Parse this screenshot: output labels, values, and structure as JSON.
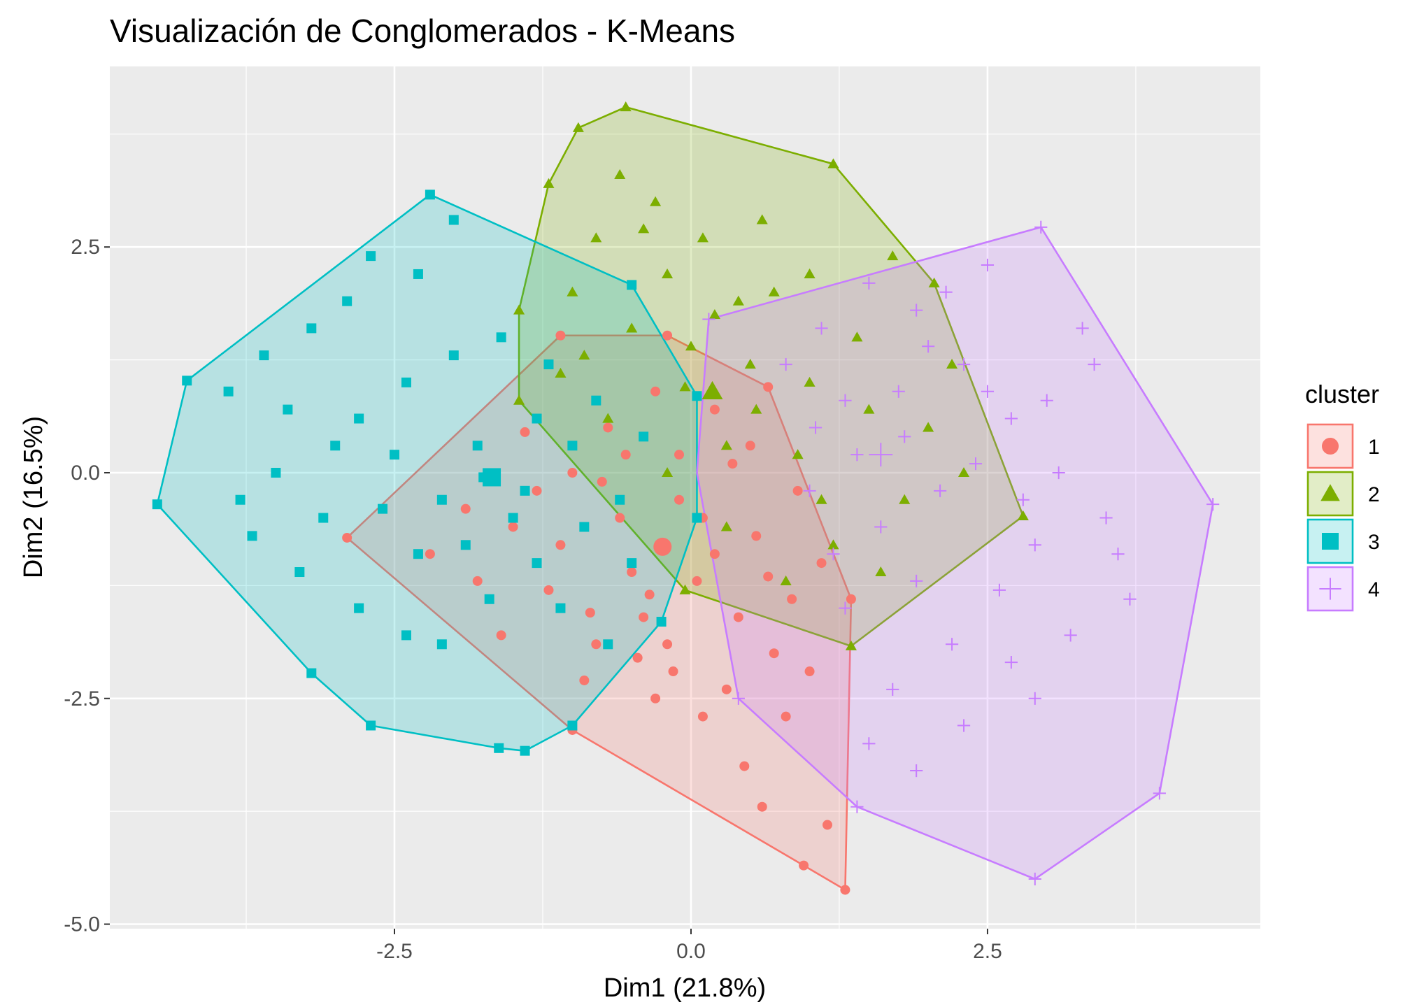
{
  "chart_data": {
    "type": "scatter",
    "title": "Visualización de Conglomerados - K-Means",
    "xlabel": "Dim1 (21.8%)",
    "ylabel": "Dim2 (16.5%)",
    "xlim": [
      -4.9,
      4.8
    ],
    "ylim": [
      -5.05,
      4.5
    ],
    "x_ticks": [
      -2.5,
      0.0,
      2.5
    ],
    "x_tick_labels": [
      "-2.5",
      "0.0",
      "2.5"
    ],
    "y_ticks": [
      2.5,
      0.0,
      -2.5,
      -5.0
    ],
    "y_tick_labels": [
      "2.5",
      "0.0",
      "-2.5",
      "-5.0"
    ],
    "grid": true,
    "legend": {
      "title": "cluster",
      "position": "right"
    },
    "series": [
      {
        "name": "1",
        "color": "#F8766D",
        "shape": "circle",
        "centroid": [
          -0.24,
          -0.82
        ],
        "hull": [
          [
            -2.9,
            -0.72
          ],
          [
            -1.1,
            1.52
          ],
          [
            -0.2,
            1.52
          ],
          [
            0.65,
            0.95
          ],
          [
            1.35,
            -1.4
          ],
          [
            1.3,
            -4.62
          ],
          [
            0.95,
            -4.35
          ],
          [
            -1.0,
            -2.85
          ],
          [
            -2.9,
            -0.72
          ]
        ],
        "points": [
          [
            -2.9,
            -0.72
          ],
          [
            -1.1,
            1.52
          ],
          [
            -0.2,
            1.52
          ],
          [
            0.65,
            0.95
          ],
          [
            1.35,
            -1.4
          ],
          [
            1.3,
            -4.62
          ],
          [
            0.95,
            -4.35
          ],
          [
            -1.0,
            -2.85
          ],
          [
            0.6,
            -3.7
          ],
          [
            0.45,
            -3.25
          ],
          [
            1.15,
            -3.9
          ],
          [
            0.1,
            -2.7
          ],
          [
            -0.3,
            -2.5
          ],
          [
            -0.4,
            -1.6
          ],
          [
            -0.8,
            -1.9
          ],
          [
            -1.2,
            -1.3
          ],
          [
            -1.5,
            -0.6
          ],
          [
            -1.8,
            -1.2
          ],
          [
            -0.6,
            -0.5
          ],
          [
            -0.1,
            -0.3
          ],
          [
            0.2,
            -0.9
          ],
          [
            0.4,
            -1.6
          ],
          [
            0.7,
            -2.0
          ],
          [
            1.0,
            -2.2
          ],
          [
            1.1,
            -1.0
          ],
          [
            0.9,
            -0.2
          ],
          [
            0.5,
            0.3
          ],
          [
            0.2,
            0.7
          ],
          [
            -0.3,
            0.9
          ],
          [
            -0.7,
            0.5
          ],
          [
            -1.0,
            0.0
          ],
          [
            -1.3,
            -0.2
          ],
          [
            -0.5,
            -1.1
          ],
          [
            -0.9,
            -2.3
          ],
          [
            -0.2,
            -1.9
          ],
          [
            0.3,
            -2.4
          ],
          [
            0.8,
            -2.7
          ],
          [
            -1.6,
            -1.8
          ],
          [
            -2.2,
            -0.9
          ],
          [
            -0.1,
            0.2
          ],
          [
            0.1,
            -0.5
          ],
          [
            0.55,
            -0.7
          ],
          [
            -0.75,
            -0.1
          ],
          [
            -1.1,
            -0.8
          ],
          [
            -0.35,
            -1.35
          ],
          [
            0.05,
            -1.2
          ],
          [
            -0.55,
            0.2
          ],
          [
            0.35,
            0.1
          ],
          [
            -1.4,
            0.45
          ],
          [
            -1.9,
            -0.4
          ],
          [
            0.85,
            -1.4
          ],
          [
            -0.15,
            -2.2
          ],
          [
            0.65,
            -1.15
          ],
          [
            -0.85,
            -1.55
          ],
          [
            -0.45,
            -2.05
          ]
        ]
      },
      {
        "name": "2",
        "color": "#7CAE00",
        "shape": "triangle",
        "centroid": [
          0.18,
          0.9
        ],
        "hull": [
          [
            -0.55,
            4.05
          ],
          [
            1.2,
            3.42
          ],
          [
            2.05,
            2.1
          ],
          [
            2.8,
            -0.48
          ],
          [
            1.35,
            -1.92
          ],
          [
            -0.05,
            -1.3
          ],
          [
            -1.45,
            0.8
          ],
          [
            -1.45,
            1.8
          ],
          [
            -1.2,
            3.2
          ],
          [
            -0.95,
            3.82
          ],
          [
            -0.55,
            4.05
          ]
        ],
        "points": [
          [
            -0.55,
            4.05
          ],
          [
            1.2,
            3.42
          ],
          [
            2.05,
            2.1
          ],
          [
            2.8,
            -0.48
          ],
          [
            1.35,
            -1.92
          ],
          [
            -0.05,
            -1.3
          ],
          [
            -1.45,
            0.8
          ],
          [
            -1.45,
            1.8
          ],
          [
            -1.2,
            3.2
          ],
          [
            -0.95,
            3.82
          ],
          [
            -0.6,
            3.3
          ],
          [
            -0.3,
            3.0
          ],
          [
            0.1,
            2.6
          ],
          [
            0.6,
            2.8
          ],
          [
            1.0,
            2.2
          ],
          [
            0.4,
            1.9
          ],
          [
            -0.2,
            2.2
          ],
          [
            -0.8,
            2.6
          ],
          [
            -1.0,
            2.0
          ],
          [
            -0.5,
            1.6
          ],
          [
            0.0,
            1.4
          ],
          [
            0.5,
            1.2
          ],
          [
            1.0,
            1.0
          ],
          [
            1.5,
            0.7
          ],
          [
            2.0,
            0.5
          ],
          [
            2.3,
            0.0
          ],
          [
            1.8,
            -0.3
          ],
          [
            1.2,
            -0.8
          ],
          [
            0.8,
            -1.2
          ],
          [
            0.3,
            -0.6
          ],
          [
            -0.2,
            0.0
          ],
          [
            -0.7,
            0.6
          ],
          [
            -1.1,
            1.1
          ],
          [
            0.3,
            0.3
          ],
          [
            0.9,
            0.2
          ],
          [
            1.4,
            1.5
          ],
          [
            1.7,
            2.4
          ],
          [
            0.7,
            2.0
          ],
          [
            -0.4,
            2.7
          ],
          [
            1.1,
            -0.3
          ],
          [
            0.55,
            0.7
          ],
          [
            -0.05,
            0.95
          ],
          [
            1.6,
            -1.1
          ],
          [
            2.2,
            1.2
          ],
          [
            0.2,
            1.75
          ],
          [
            -0.9,
            1.3
          ]
        ]
      },
      {
        "name": "3",
        "color": "#00BFC4",
        "shape": "square",
        "centroid": [
          -1.68,
          -0.05
        ],
        "hull": [
          [
            -2.2,
            3.08
          ],
          [
            -0.5,
            2.08
          ],
          [
            0.05,
            0.85
          ],
          [
            0.05,
            -0.5
          ],
          [
            -0.25,
            -1.65
          ],
          [
            -1.0,
            -2.8
          ],
          [
            -1.4,
            -3.08
          ],
          [
            -1.62,
            -3.05
          ],
          [
            -2.7,
            -2.8
          ],
          [
            -3.2,
            -2.22
          ],
          [
            -4.5,
            -0.35
          ],
          [
            -4.25,
            1.02
          ],
          [
            -2.2,
            3.08
          ]
        ],
        "points": [
          [
            -2.2,
            3.08
          ],
          [
            -0.5,
            2.08
          ],
          [
            0.05,
            0.85
          ],
          [
            0.05,
            -0.5
          ],
          [
            -0.25,
            -1.65
          ],
          [
            -1.0,
            -2.8
          ],
          [
            -1.4,
            -3.08
          ],
          [
            -1.62,
            -3.05
          ],
          [
            -2.7,
            -2.8
          ],
          [
            -3.2,
            -2.22
          ],
          [
            -4.5,
            -0.35
          ],
          [
            -4.25,
            1.02
          ],
          [
            -2.0,
            2.8
          ],
          [
            -2.7,
            2.4
          ],
          [
            -3.2,
            1.6
          ],
          [
            -3.6,
            1.3
          ],
          [
            -3.9,
            0.9
          ],
          [
            -3.5,
            0.0
          ],
          [
            -3.1,
            -0.5
          ],
          [
            -3.7,
            -0.7
          ],
          [
            -3.3,
            -1.1
          ],
          [
            -2.8,
            -1.5
          ],
          [
            -2.4,
            -1.8
          ],
          [
            -2.1,
            -1.9
          ],
          [
            -1.7,
            -1.4
          ],
          [
            -1.3,
            -1.0
          ],
          [
            -0.9,
            -0.6
          ],
          [
            -0.6,
            -0.3
          ],
          [
            -0.4,
            0.4
          ],
          [
            -0.8,
            0.8
          ],
          [
            -1.2,
            1.2
          ],
          [
            -1.6,
            1.5
          ],
          [
            -2.0,
            1.3
          ],
          [
            -2.4,
            1.0
          ],
          [
            -2.8,
            0.6
          ],
          [
            -2.5,
            0.2
          ],
          [
            -2.1,
            -0.3
          ],
          [
            -1.8,
            0.3
          ],
          [
            -1.4,
            -0.2
          ],
          [
            -1.0,
            0.3
          ],
          [
            -2.3,
            -0.9
          ],
          [
            -1.9,
            -0.8
          ],
          [
            -1.5,
            -0.5
          ],
          [
            -3.0,
            0.3
          ],
          [
            -3.4,
            0.7
          ],
          [
            -2.9,
            1.9
          ],
          [
            -2.3,
            2.2
          ],
          [
            -1.75,
            -0.05
          ],
          [
            -1.1,
            -1.5
          ],
          [
            -0.7,
            -1.9
          ],
          [
            -2.6,
            -0.4
          ],
          [
            -3.8,
            -0.3
          ],
          [
            -1.3,
            0.6
          ],
          [
            -0.5,
            -1.0
          ]
        ]
      },
      {
        "name": "4",
        "color": "#C77CFF",
        "shape": "plus",
        "centroid": [
          1.6,
          0.2
        ],
        "hull": [
          [
            0.15,
            1.7
          ],
          [
            2.95,
            2.72
          ],
          [
            4.4,
            -0.35
          ],
          [
            3.95,
            -3.55
          ],
          [
            2.9,
            -4.5
          ],
          [
            1.4,
            -3.7
          ],
          [
            0.4,
            -2.5
          ],
          [
            0.05,
            0.0
          ],
          [
            0.15,
            1.7
          ]
        ],
        "points": [
          [
            0.15,
            1.7
          ],
          [
            2.95,
            2.72
          ],
          [
            4.4,
            -0.35
          ],
          [
            3.95,
            -3.55
          ],
          [
            2.9,
            -4.5
          ],
          [
            1.4,
            -3.7
          ],
          [
            0.4,
            -2.5
          ],
          [
            2.5,
            2.3
          ],
          [
            3.3,
            1.6
          ],
          [
            3.0,
            0.8
          ],
          [
            3.5,
            -0.5
          ],
          [
            3.7,
            -1.4
          ],
          [
            3.2,
            -1.8
          ],
          [
            2.9,
            -2.5
          ],
          [
            2.3,
            -2.8
          ],
          [
            1.9,
            -3.3
          ],
          [
            1.5,
            -3.0
          ],
          [
            1.7,
            -2.4
          ],
          [
            2.2,
            -1.9
          ],
          [
            2.6,
            -1.3
          ],
          [
            2.9,
            -0.8
          ],
          [
            3.1,
            0.0
          ],
          [
            2.7,
            0.6
          ],
          [
            2.3,
            1.2
          ],
          [
            1.9,
            1.8
          ],
          [
            1.5,
            2.1
          ],
          [
            1.1,
            1.6
          ],
          [
            0.8,
            1.2
          ],
          [
            1.3,
            0.8
          ],
          [
            1.8,
            0.4
          ],
          [
            2.1,
            -0.2
          ],
          [
            1.6,
            -0.6
          ],
          [
            1.2,
            -0.9
          ],
          [
            1.0,
            -0.2
          ],
          [
            1.4,
            0.2
          ],
          [
            2.4,
            0.1
          ],
          [
            2.8,
            -0.3
          ],
          [
            1.9,
            -1.2
          ],
          [
            2.5,
            0.9
          ],
          [
            3.4,
            1.2
          ],
          [
            2.0,
            1.4
          ],
          [
            1.3,
            -1.5
          ],
          [
            2.7,
            -2.1
          ],
          [
            3.6,
            -0.9
          ],
          [
            1.75,
            0.9
          ],
          [
            2.15,
            2.0
          ],
          [
            1.05,
            0.5
          ]
        ]
      }
    ]
  }
}
